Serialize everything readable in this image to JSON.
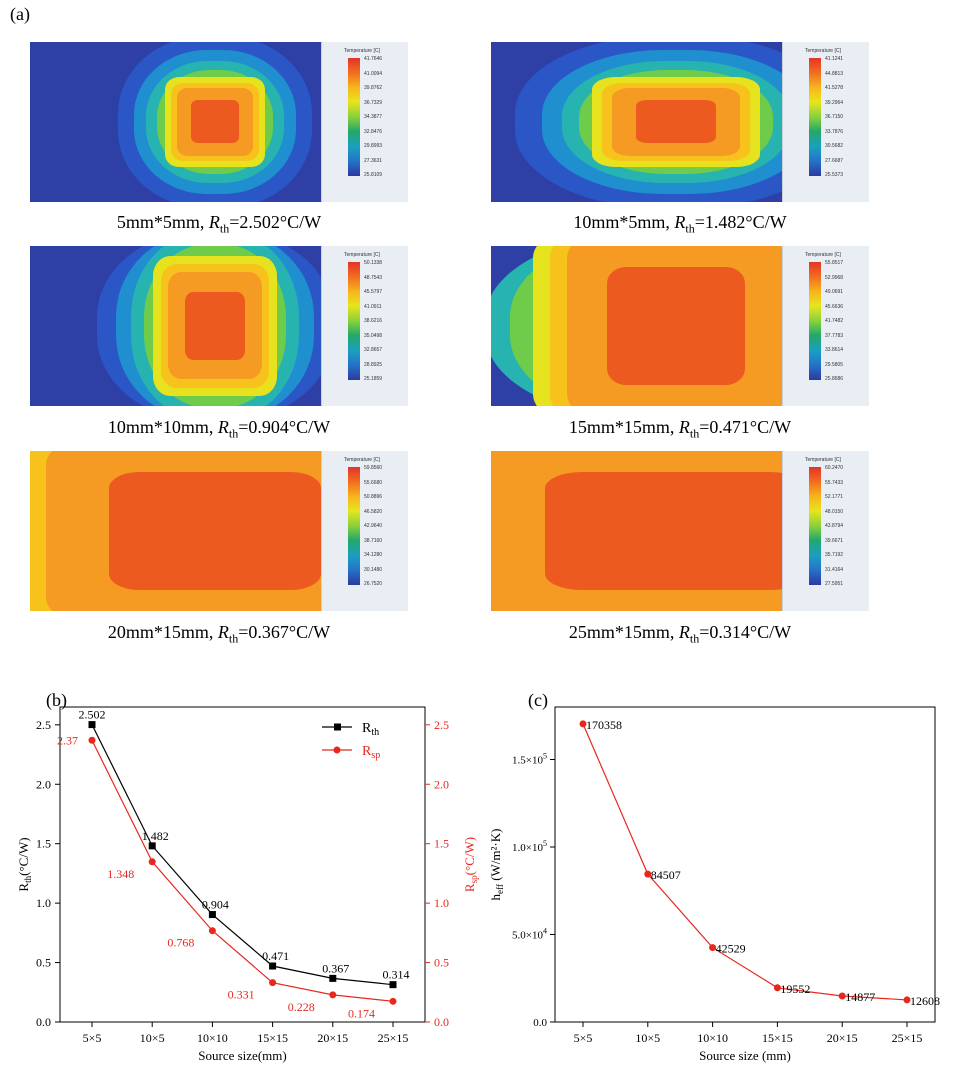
{
  "panel_a": {
    "label": "(a)",
    "scale_title": "Temperature [C]",
    "sims": [
      {
        "size": "5mm*5mm",
        "r_label": "R",
        "r_sub": "th",
        "r_value": "=2.502°C/W",
        "ticks": [
          "41.7646",
          "41.0094",
          "39.8762",
          "36.7329",
          "34.3877",
          "32.8476",
          "29.8993",
          "27.3631",
          "25.8109"
        ]
      },
      {
        "size": "10mm*5mm",
        "r_label": "R",
        "r_sub": "th",
        "r_value": "=1.482°C/W",
        "ticks": [
          "41.1241",
          "44.8813",
          "41.5278",
          "39.2964",
          "36.7150",
          "33.7876",
          "30.5682",
          "27.6687",
          "25.5373"
        ]
      },
      {
        "size": "10mm*10mm",
        "r_label": "R",
        "r_sub": "th",
        "r_value": "=0.904°C/W",
        "ticks": [
          "50.1338",
          "48.7543",
          "45.5797",
          "41.0911",
          "38.6216",
          "35.0498",
          "32.8657",
          "28.8925",
          "25.1859"
        ]
      },
      {
        "size": "15mm*15mm",
        "r_label": "R",
        "r_sub": "th",
        "r_value": "=0.471°C/W",
        "ticks": [
          "55.8517",
          "52.9968",
          "49.0691",
          "45.6636",
          "41.7482",
          "37.7783",
          "33.8614",
          "29.5805",
          "25.8686"
        ]
      },
      {
        "size": "20mm*15mm",
        "r_label": "R",
        "r_sub": "th",
        "r_value": "=0.367°C/W",
        "ticks": [
          "59.8560",
          "55.6680",
          "50.8896",
          "46.5820",
          "42.9640",
          "38.7160",
          "34.1280",
          "30.1480",
          "26.7520"
        ]
      },
      {
        "size": "25mm*15mm",
        "r_label": "R",
        "r_sub": "th",
        "r_value": "=0.314°C/W",
        "ticks": [
          "60.2470",
          "55.7433",
          "52.1771",
          "48.0150",
          "43.8794",
          "39.6671",
          "35.7192",
          "31.4164",
          "27.5951"
        ]
      }
    ]
  },
  "chart_data": [
    {
      "panel_label": "(b)",
      "type": "line",
      "categories": [
        "5×5",
        "10×5",
        "10×10",
        "15×15",
        "20×15",
        "25×15"
      ],
      "xlabel": "Source size(mm)",
      "ylabel_left": {
        "base": "R",
        "sub": "th",
        "rest": "(°C/W)"
      },
      "ylabel_right": {
        "base": "R",
        "sub": "sp",
        "rest": "(°C/W)"
      },
      "ylim": [
        0,
        2.65
      ],
      "yticks": [
        "0.0",
        "0.5",
        "1.0",
        "1.5",
        "2.0",
        "2.5"
      ],
      "series": [
        {
          "name": "R",
          "name_sub": "th",
          "color": "#000000",
          "marker": "square",
          "values": [
            2.502,
            1.482,
            0.904,
            0.471,
            0.367,
            0.314
          ],
          "labels": [
            "2.502",
            "1.482",
            "0.904",
            "0.471",
            "0.367",
            "0.314"
          ]
        },
        {
          "name": "R",
          "name_sub": "sp",
          "color": "#e8281e",
          "marker": "circle",
          "values": [
            2.37,
            1.348,
            0.768,
            0.331,
            0.228,
            0.174
          ],
          "labels": [
            "2.37",
            "1.348",
            "0.768",
            "0.331",
            "0.228",
            "0.174"
          ]
        }
      ],
      "legend": "top-right"
    },
    {
      "panel_label": "(c)",
      "type": "line",
      "categories": [
        "5×5",
        "10×5",
        "10×10",
        "15×15",
        "20×15",
        "25×15"
      ],
      "xlabel": "Source size (mm)",
      "ylabel": {
        "base": "h",
        "sub": "eff",
        "rest": " (W/m²·K)"
      },
      "ylim": [
        0,
        180000
      ],
      "yticks": [
        {
          "value": 0,
          "label": "0.0",
          "exp": ""
        },
        {
          "value": 50000,
          "label": "5.0×10",
          "exp": "4"
        },
        {
          "value": 100000,
          "label": "1.0×10",
          "exp": "5"
        },
        {
          "value": 150000,
          "label": "1.5×10",
          "exp": "5"
        }
      ],
      "series": [
        {
          "color": "#e8281e",
          "marker": "circle",
          "values": [
            170358,
            84507,
            42529,
            19552,
            14877,
            12608
          ],
          "labels": [
            "170358",
            "84507",
            "42529",
            "19552",
            "14877",
            "12608"
          ]
        }
      ]
    }
  ]
}
